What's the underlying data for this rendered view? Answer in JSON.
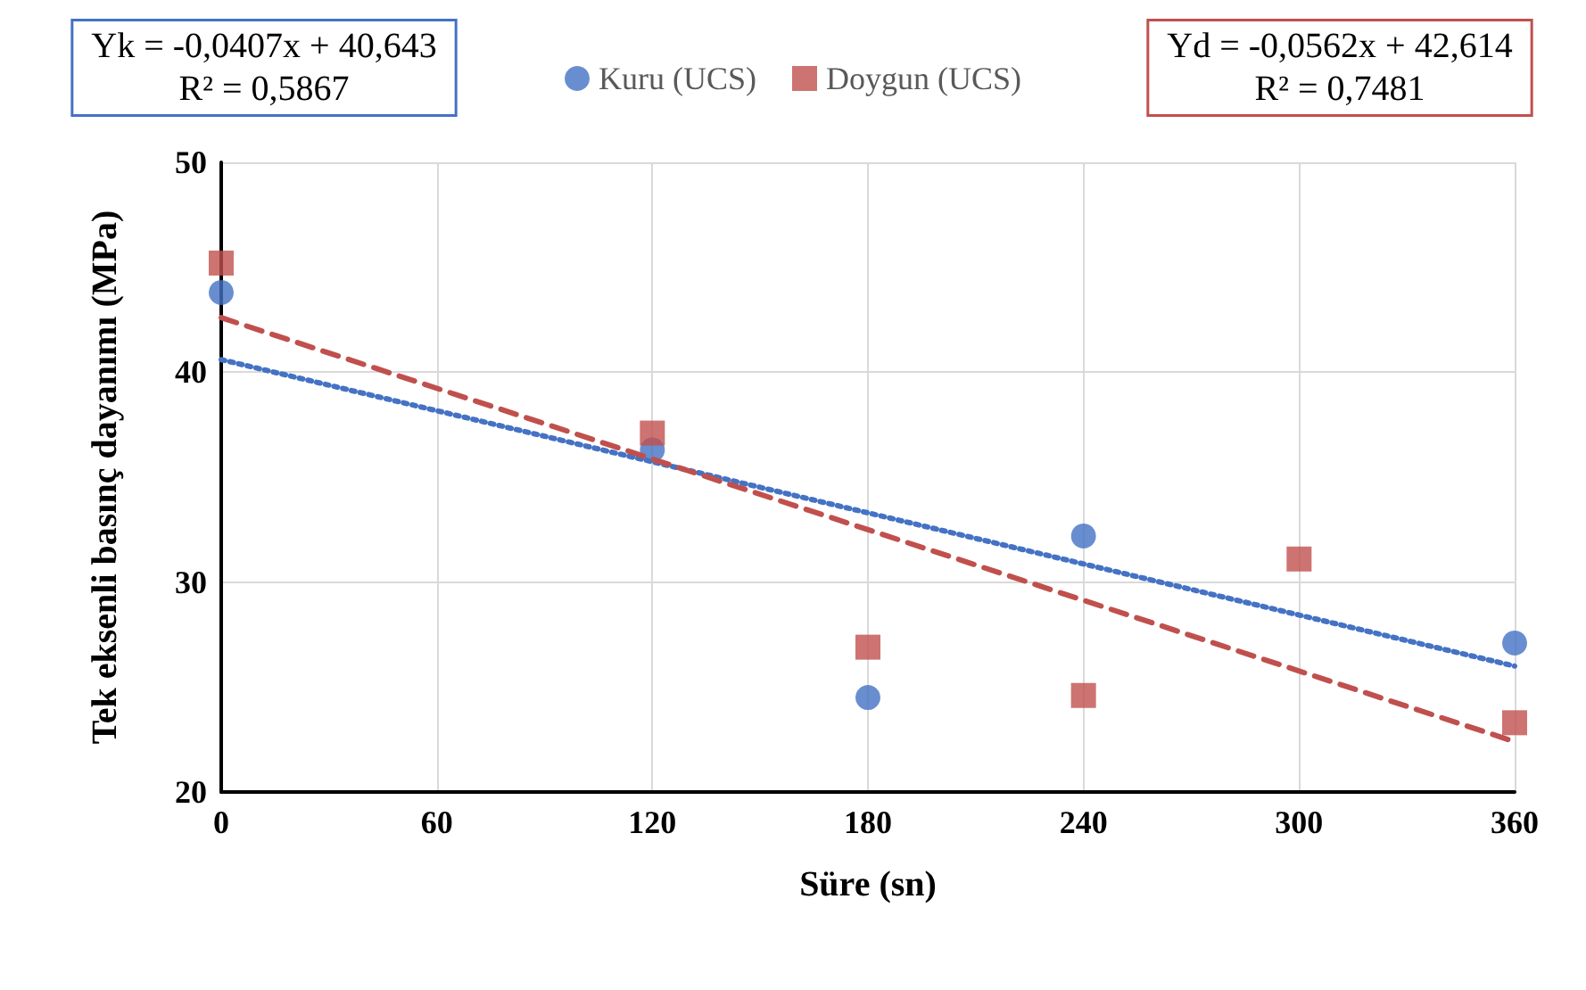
{
  "chart_data": {
    "type": "scatter",
    "xlabel": "Süre (sn)",
    "ylabel": "Tek eksenli basınç dayanımı (MPa)",
    "xlim": [
      0,
      360
    ],
    "xticks": [
      0,
      60,
      120,
      180,
      240,
      300,
      360
    ],
    "ylim": [
      20,
      50
    ],
    "yticks": [
      20,
      30,
      40,
      50
    ],
    "grid": true,
    "legend": "top",
    "annotations": [
      "Yk = -0,0407x + 40,643\nR² = 0,5867",
      "Yd = -0,0562x + 42,614\nR² = 0,7481"
    ],
    "series": [
      {
        "name": "Kuru (UCS)",
        "marker": "circle",
        "color": "#4472c4",
        "x": [
          0,
          120,
          180,
          240,
          360
        ],
        "values": [
          43.8,
          36.3,
          24.5,
          32.2,
          27.1
        ]
      },
      {
        "name": "Doygun (UCS)",
        "marker": "square",
        "color": "#c0504d",
        "x": [
          0,
          120,
          180,
          240,
          300,
          360
        ],
        "values": [
          45.2,
          37.1,
          26.9,
          24.6,
          31.1,
          23.3
        ]
      },
      {
        "type": "line",
        "marker": "none",
        "line_style": "dotted",
        "color": "#4472c4",
        "x": [
          0,
          360
        ],
        "values": [
          40.6,
          26.0
        ]
      },
      {
        "type": "line",
        "marker": "none",
        "line_style": "dashed",
        "color": "#c0504d",
        "x": [
          0,
          360
        ],
        "values": [
          42.6,
          22.4
        ]
      }
    ]
  }
}
